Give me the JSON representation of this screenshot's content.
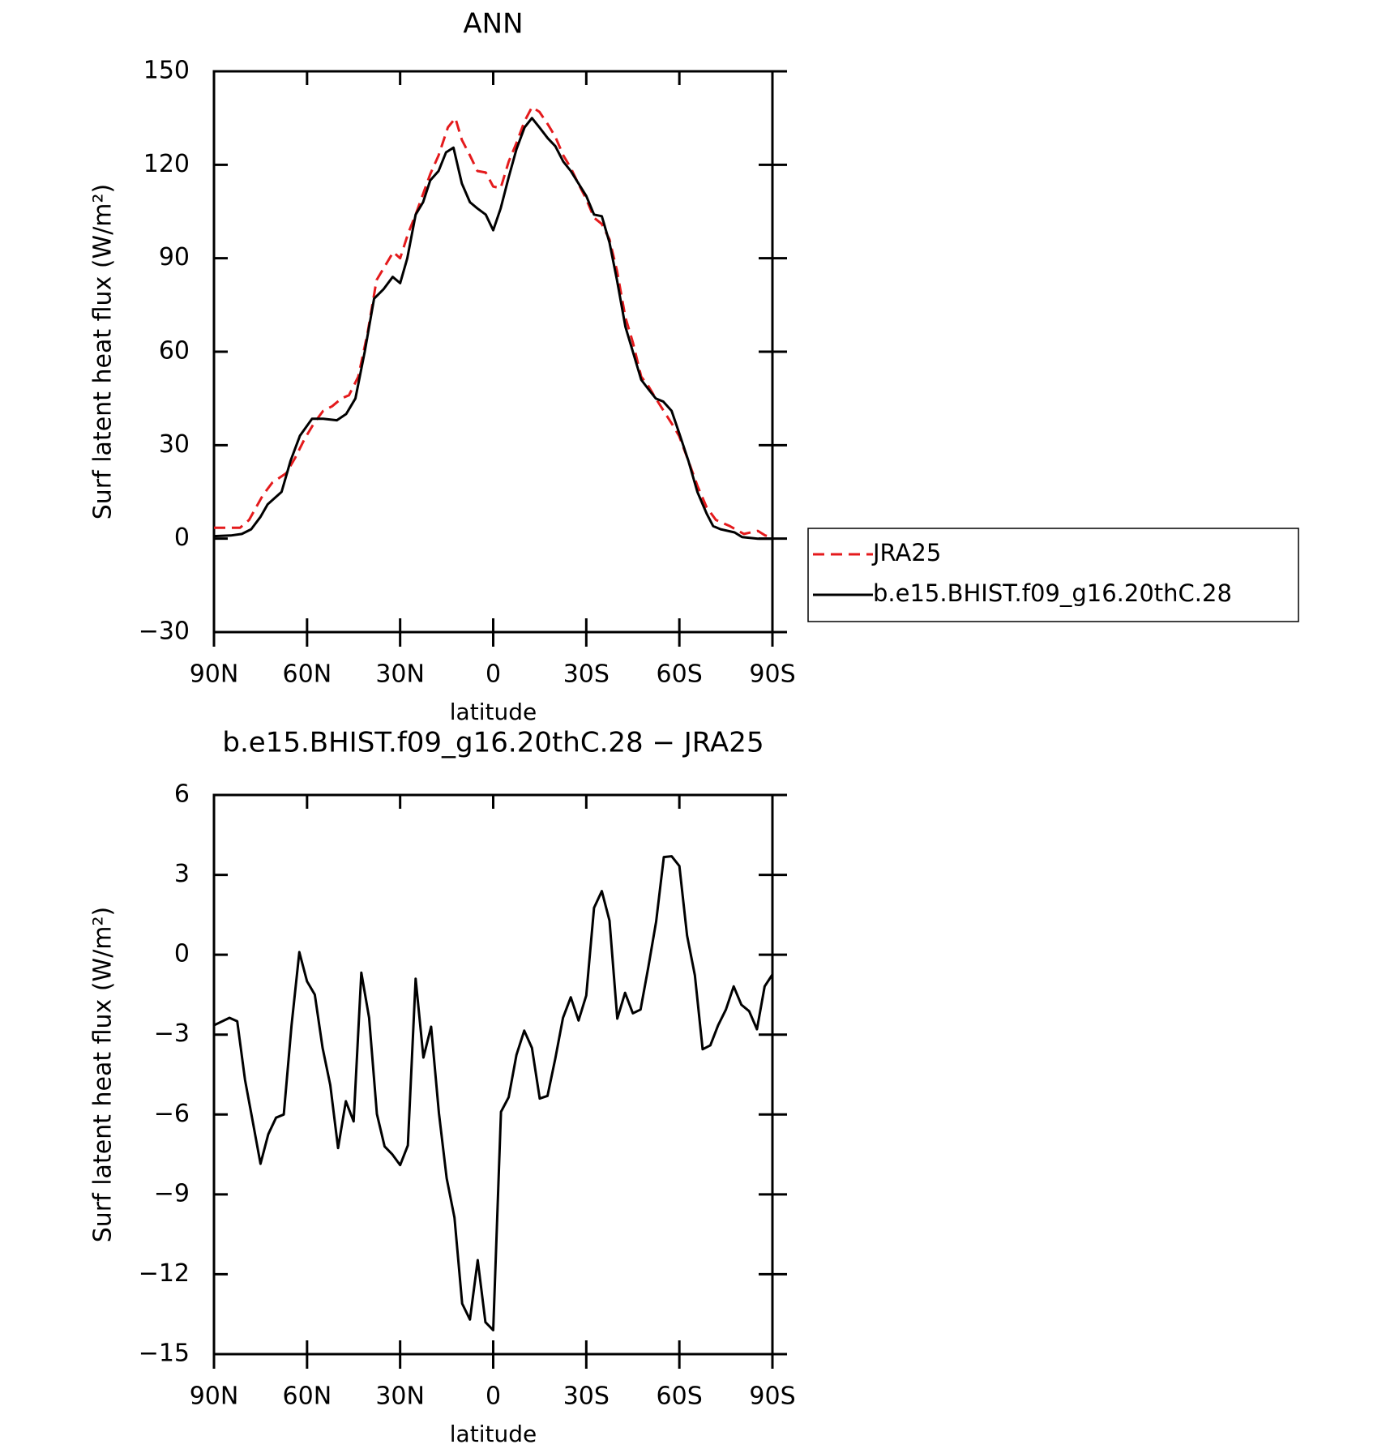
{
  "chart_data": [
    {
      "type": "line",
      "title": "ANN",
      "xlabel": "latitude",
      "ylabel": "Surf latent heat flux (W/m²)",
      "xlim": [
        90,
        -90
      ],
      "xticks": [
        {
          "value": 90,
          "label": "90N"
        },
        {
          "value": 60,
          "label": "60N"
        },
        {
          "value": 30,
          "label": "30N"
        },
        0,
        {
          "value": -30,
          "label": "30S"
        },
        {
          "value": -60,
          "label": "60S"
        },
        {
          "value": -90,
          "label": "90S"
        }
      ],
      "ylim": [
        -30,
        150
      ],
      "yticks": [
        {
          "value": -30,
          "label": "−30"
        },
        0,
        30,
        60,
        90,
        120,
        150
      ],
      "legend": "right",
      "series": [
        {
          "name": "JRA25",
          "color": "#e41a1c",
          "linestyle": "dashed",
          "x": [
            90,
            81.6,
            78.7,
            74.2,
            71.2,
            66.7,
            63.8,
            60.8,
            57.8,
            54.8,
            51.9,
            48.9,
            46.5,
            43.5,
            40.5,
            37.6,
            34.6,
            32.2,
            30,
            27.4,
            25,
            20.3,
            17.6,
            14.6,
            12.2,
            10.1,
            7.5,
            5.1,
            2.4,
            0,
            -2.4,
            -5,
            -7.5,
            -10.1,
            -12.5,
            -14.9,
            -17.6,
            -20,
            -22.6,
            -25,
            -27.4,
            -30,
            -32.5,
            -35,
            -37.5,
            -39.9,
            -42.6,
            -45,
            -47.7,
            -50,
            -52.4,
            -57.5,
            -59.9,
            -62.9,
            -65.8,
            -68.8,
            -71.8,
            -76.3,
            -80.8,
            -85.3,
            -87.7,
            -90
          ],
          "values": [
            3.5,
            3.5,
            6,
            14,
            18,
            21,
            26,
            32,
            37,
            41,
            42.5,
            45,
            46,
            52,
            66,
            83,
            88,
            92,
            90,
            98,
            104,
            117,
            123,
            132,
            135,
            128,
            123,
            118,
            117.5,
            113,
            112.5,
            121,
            127,
            134,
            138.5,
            137,
            133,
            129,
            123,
            119,
            114,
            109,
            103,
            101,
            96,
            86,
            71,
            63,
            52,
            49,
            45,
            37,
            33,
            25,
            17,
            10,
            6,
            4,
            1.5,
            2.5,
            1,
            0.5
          ]
        },
        {
          "name": "b.e15.BHIST.f09_g16.20thC.28",
          "color": "#000000",
          "linestyle": "solid",
          "x": [
            90,
            84.6,
            81,
            78,
            75,
            72.7,
            68.2,
            65.3,
            62.3,
            58.4,
            54.8,
            50.4,
            47.4,
            44.4,
            41.4,
            38.4,
            35.4,
            32.4,
            30,
            27.7,
            25,
            22.6,
            20.3,
            17.6,
            15.2,
            12.8,
            10.1,
            7.5,
            5.1,
            2.4,
            0,
            -2.4,
            -5,
            -7.5,
            -10.1,
            -12.5,
            -14.9,
            -17.6,
            -20,
            -22.6,
            -25,
            -30,
            -32.5,
            -35,
            -37.5,
            -39.9,
            -42.6,
            -45,
            -47.7,
            -50,
            -52.4,
            -54.8,
            -57.5,
            -59.9,
            -62.9,
            -65.8,
            -68.8,
            -70.9,
            -73.3,
            -77.8,
            -80.2,
            -85.3,
            -90
          ],
          "values": [
            0.8,
            1,
            1.5,
            3,
            7,
            11,
            15,
            25,
            33,
            38.5,
            38.5,
            38,
            40,
            45,
            60,
            77,
            80,
            84,
            82,
            90,
            104,
            108,
            115,
            118,
            124,
            125.5,
            114,
            108,
            106,
            104,
            99,
            106,
            116,
            125,
            132,
            135,
            132,
            128.5,
            126,
            121,
            118,
            110,
            104,
            103.5,
            95,
            83,
            68,
            60,
            51,
            48,
            45,
            44,
            41,
            34,
            25,
            15,
            8,
            4,
            3,
            2,
            0.5,
            0,
            0
          ]
        }
      ]
    },
    {
      "type": "line",
      "title": "b.e15.BHIST.f09_g16.20thC.28 − JRA25",
      "xlabel": "latitude",
      "ylabel": "Surf latent heat flux (W/m²)",
      "xlim": [
        90,
        -90
      ],
      "xticks": [
        {
          "value": 90,
          "label": "90N"
        },
        {
          "value": 60,
          "label": "60N"
        },
        {
          "value": 30,
          "label": "30N"
        },
        0,
        {
          "value": -30,
          "label": "30S"
        },
        {
          "value": -60,
          "label": "60S"
        },
        {
          "value": -90,
          "label": "90S"
        }
      ],
      "ylim": [
        -15,
        6
      ],
      "yticks": [
        {
          "value": -15,
          "label": "−15"
        },
        {
          "value": -12,
          "label": "−12"
        },
        {
          "value": -9,
          "label": "−9"
        },
        {
          "value": -6,
          "label": "−6"
        },
        {
          "value": -3,
          "label": "−3"
        },
        0,
        3,
        6
      ],
      "series": [
        {
          "color": "#000000",
          "linestyle": "solid",
          "x": [
            90,
            85,
            82.5,
            80,
            77.5,
            75,
            72.5,
            70,
            67.5,
            65,
            62.5,
            60,
            57.5,
            55,
            52.5,
            50,
            47.5,
            45,
            42.5,
            40,
            37.5,
            35,
            32.5,
            30,
            27.5,
            25,
            22.5,
            20,
            17.5,
            15,
            12.5,
            10,
            7.5,
            5,
            2.5,
            0,
            -2.5,
            -5,
            -7.5,
            -10,
            -12.5,
            -15,
            -17.5,
            -20,
            -22.5,
            -25,
            -27.5,
            -30,
            -32.5,
            -35,
            -37.5,
            -40,
            -42.5,
            -45,
            -47.5,
            -50,
            -52.5,
            -55,
            -57.5,
            -60,
            -62.5,
            -65,
            -67.5,
            -70,
            -72.5,
            -75,
            -77.5,
            -80,
            -82.5,
            -85,
            -87.5,
            -90
          ],
          "values": [
            -2.65,
            -2.37,
            -2.5,
            -4.7,
            -6.26,
            -7.85,
            -6.74,
            -6.12,
            -6.0,
            -2.65,
            0.1,
            -1.0,
            -1.5,
            -3.5,
            -4.9,
            -7.26,
            -5.5,
            -6.26,
            -0.67,
            -2.37,
            -5.98,
            -7.2,
            -7.5,
            -7.9,
            -7.16,
            -0.9,
            -3.86,
            -2.7,
            -5.94,
            -8.4,
            -9.87,
            -13.1,
            -13.7,
            -11.47,
            -13.8,
            -14.1,
            -5.9,
            -5.35,
            -3.76,
            -2.85,
            -3.5,
            -5.4,
            -5.3,
            -3.9,
            -2.37,
            -1.6,
            -2.47,
            -1.53,
            1.76,
            2.39,
            1.28,
            -2.4,
            -1.43,
            -2.2,
            -2.06,
            -0.46,
            1.24,
            3.67,
            3.7,
            3.33,
            0.72,
            -0.77,
            -3.55,
            -3.4,
            -2.65,
            -2.06,
            -1.19,
            -1.88,
            -2.12,
            -2.8,
            -1.19,
            -0.74
          ]
        }
      ]
    }
  ]
}
